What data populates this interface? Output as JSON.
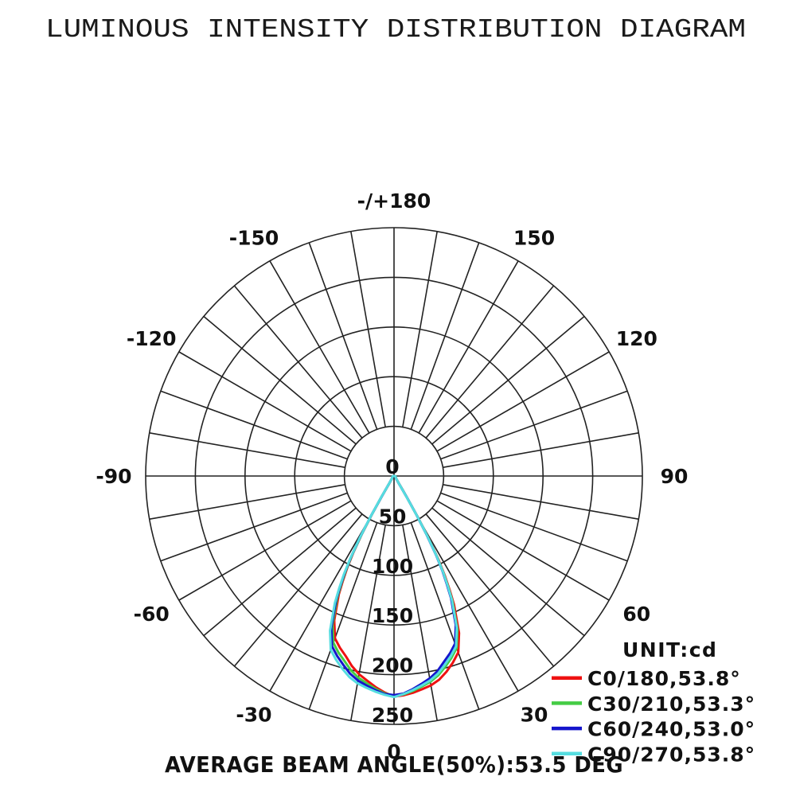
{
  "title": "LUMINOUS INTENSITY DISTRIBUTION DIAGRAM",
  "footer": "AVERAGE BEAM ANGLE(50%):53.5 DEG",
  "legend": {
    "unit_label": "UNIT:cd",
    "items": [
      {
        "label": "C0/180,53.8°",
        "color": "#ee1111"
      },
      {
        "label": "C30/210,53.3°",
        "color": "#44cc44"
      },
      {
        "label": "C60/240,53.0°",
        "color": "#1515cc"
      },
      {
        "label": "C90/270,53.8°",
        "color": "#55dde0"
      }
    ]
  },
  "chart_data": {
    "type": "polar-line",
    "title": "LUMINOUS INTENSITY DISTRIBUTION DIAGRAM",
    "unit": "cd",
    "average_beam_angle_50pct_deg": 53.5,
    "radial_axis": {
      "ticks": [
        0,
        50,
        100,
        150,
        200,
        250
      ],
      "max": 250,
      "unit": "cd"
    },
    "angle_axis": {
      "grid_step_deg": 10,
      "label_step_deg": 30,
      "range_deg": [
        -180,
        180
      ]
    },
    "legend_position": "bottom-right",
    "angle_labels": [
      {
        "angle": 180,
        "label": "-/+180"
      },
      {
        "angle": -150,
        "label": "-150"
      },
      {
        "angle": 150,
        "label": "150"
      },
      {
        "angle": -120,
        "label": "-120"
      },
      {
        "angle": 120,
        "label": "120"
      },
      {
        "angle": -90,
        "label": "-90"
      },
      {
        "angle": 90,
        "label": "90"
      },
      {
        "angle": -60,
        "label": "-60"
      },
      {
        "angle": 60,
        "label": "60"
      },
      {
        "angle": -30,
        "label": "-30"
      },
      {
        "angle": 30,
        "label": "30"
      },
      {
        "angle": 0,
        "label": "0"
      }
    ],
    "angles_deg": [
      -90,
      -75,
      -60,
      -50,
      -45,
      -40,
      -35,
      -33,
      -32,
      -31,
      -30,
      -29,
      -28,
      -27,
      -26,
      -25,
      -22.5,
      -20,
      -17.5,
      -15,
      -12.5,
      -10,
      -7.5,
      -5,
      -2.5,
      0,
      2.5,
      5,
      7.5,
      10,
      12.5,
      15,
      17.5,
      20,
      22.5,
      25,
      26,
      27,
      28,
      29,
      30,
      31,
      32,
      33,
      35,
      40,
      45,
      50,
      60,
      75,
      90
    ],
    "series": [
      {
        "name": "C0/180",
        "beam_angle_deg": 53.8,
        "color": "#ee1111",
        "values": [
          0.9,
          1.4,
          1.8,
          2.0,
          2.4,
          2.9,
          5.5,
          8.3,
          12.9,
          23.9,
          44.2,
          66.2,
          87.4,
          104.0,
          117.8,
          131.6,
          157.3,
          173.9,
          181.2,
          187.7,
          196.0,
          202.6,
          207.8,
          213.2,
          218.1,
          222,
          221,
          219,
          216.5,
          214,
          210,
          204,
          197,
          189,
          171,
          143,
          128,
          113,
          95,
          72,
          48,
          26,
          14,
          9,
          6,
          3.2,
          2.6,
          2.2,
          2,
          1.5,
          1
        ]
      },
      {
        "name": "C30/210",
        "beam_angle_deg": 53.3,
        "color": "#44cc44",
        "values": [
          0.9,
          1.4,
          1.9,
          2.1,
          2.5,
          3.0,
          5.7,
          8.5,
          13.2,
          24.6,
          45.4,
          68.0,
          89.8,
          106.8,
          121.0,
          135.1,
          161.6,
          178.6,
          186.2,
          192.8,
          200.4,
          206.2,
          210.5,
          215.0,
          219.0,
          221,
          220.1,
          217.2,
          213.8,
          210.4,
          205.6,
          198.9,
          192.1,
          184.3,
          166.7,
          139.4,
          124.8,
          110.2,
          92.6,
          70.2,
          46.8,
          25.4,
          13.7,
          8.8,
          5.9,
          3.1,
          2.5,
          2.1,
          2.0,
          1.5,
          1.0
        ]
      },
      {
        "name": "C60/240",
        "beam_angle_deg": 53.0,
        "color": "#1515cc",
        "values": [
          1.0,
          1.4,
          1.9,
          2.1,
          2.5,
          3.1,
          5.8,
          8.7,
          13.5,
          25.1,
          46.3,
          69.5,
          91.7,
          109.0,
          123.5,
          138.0,
          165.0,
          182.4,
          190.1,
          196.9,
          203.9,
          209.0,
          212.7,
          216.4,
          219.7,
          220.5,
          219.2,
          215.4,
          211.1,
          206.9,
          201.3,
          193.8,
          187.2,
          179.6,
          162.5,
          135.9,
          121.6,
          107.4,
          90.3,
          68.4,
          45.6,
          24.7,
          13.3,
          8.6,
          5.7,
          3.0,
          2.5,
          2.1,
          1.9,
          1.4,
          1.0
        ]
      },
      {
        "name": "C90/270",
        "beam_angle_deg": 53.8,
        "color": "#55dde0",
        "values": [
          1.0,
          1.5,
          2.0,
          2.2,
          2.6,
          3.2,
          5.9,
          8.9,
          13.8,
          25.6,
          47.3,
          70.9,
          93.6,
          111.3,
          126.1,
          140.9,
          168.4,
          186.2,
          194.0,
          200.9,
          207.4,
          211.9,
          214.9,
          217.8,
          220.4,
          222.5,
          219.7,
          216.4,
          212.7,
          209.0,
          203.9,
          196.9,
          190.1,
          182.4,
          165.0,
          138.0,
          123.5,
          109.0,
          91.7,
          69.5,
          46.3,
          25.1,
          13.5,
          8.7,
          5.8,
          3.1,
          2.5,
          2.1,
          2.0,
          1.5,
          1.0
        ]
      }
    ]
  }
}
